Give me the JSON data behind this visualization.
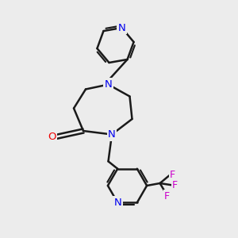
{
  "background_color": "#ececec",
  "bond_color": "#1a1a1a",
  "bond_width": 1.8,
  "nitrogen_color": "#0000ee",
  "oxygen_color": "#ee0000",
  "fluorine_color": "#cc00cc",
  "figsize": [
    3.0,
    3.0
  ],
  "dpi": 100,
  "xlim": [
    0,
    10
  ],
  "ylim": [
    0,
    10
  ]
}
